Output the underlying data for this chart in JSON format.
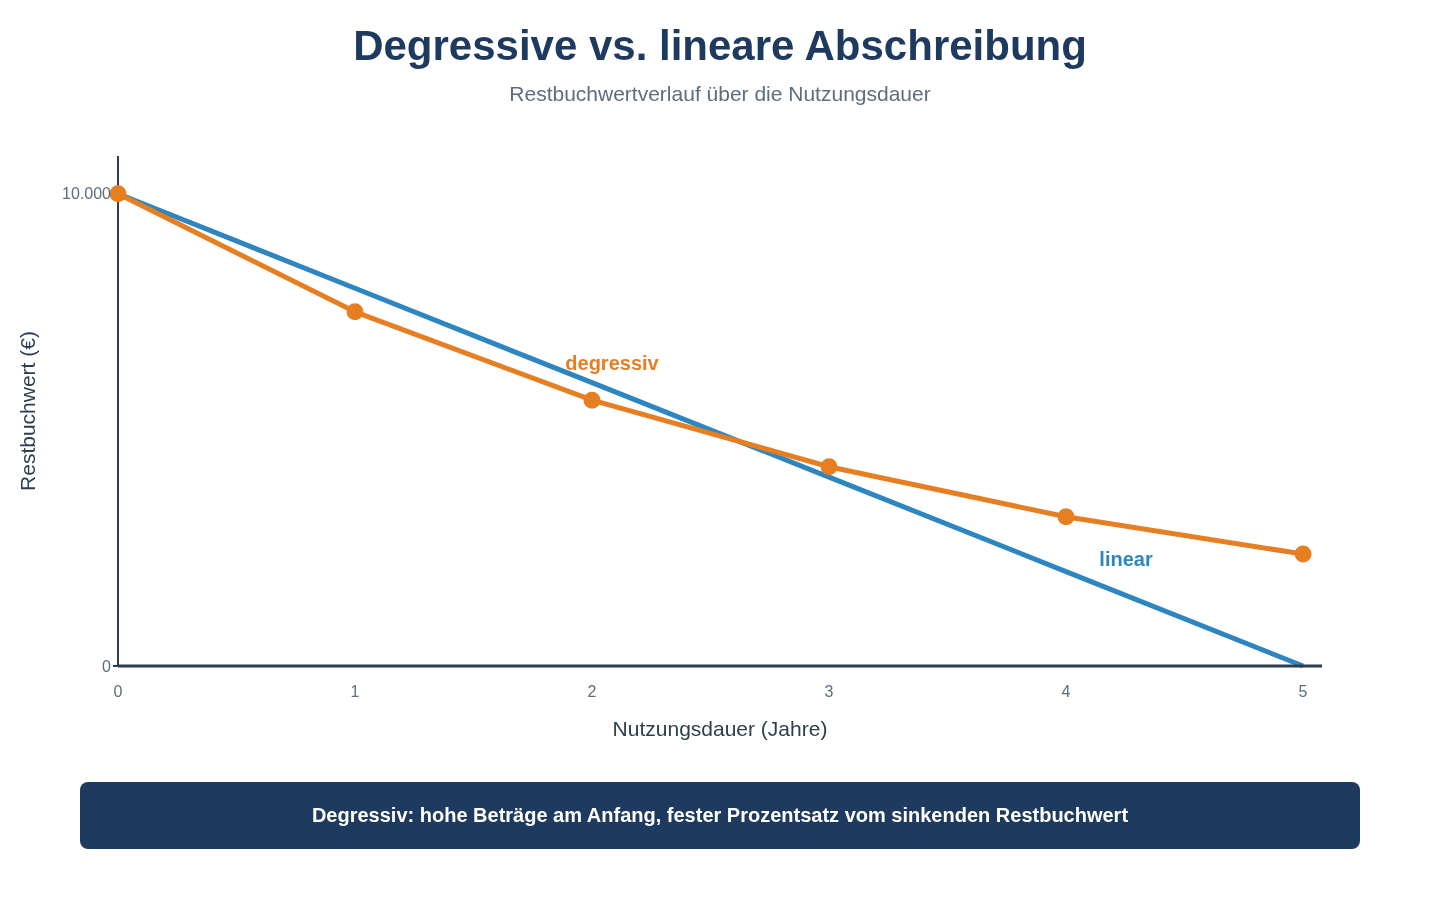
{
  "chart_data": {
    "type": "line",
    "title": "Degressive vs. lineare Abschreibung",
    "subtitle": "Restbuchwertverlauf über die Nutzungsdauer",
    "xlabel": "Nutzungsdauer (Jahre)",
    "ylabel": "Restbuchwert (€)",
    "x": [
      0,
      1,
      2,
      3,
      4,
      5
    ],
    "series": [
      {
        "name": "linear",
        "color": "#2e86c1",
        "values": [
          10000,
          8000,
          6000,
          4000,
          2000,
          0
        ],
        "marker": "none"
      },
      {
        "name": "degressiv",
        "color": "#e67e22",
        "values": [
          10000,
          7500,
          5630,
          4220,
          3160,
          2370
        ],
        "marker": "circle"
      }
    ],
    "xlim": [
      0,
      5.08
    ],
    "xticks": [
      0,
      1,
      2,
      3,
      4,
      5
    ],
    "ylim": [
      0,
      10800
    ],
    "yticks": [
      0,
      {
        "value": 10000,
        "label": "10.000"
      }
    ],
    "grid": false,
    "legend": false,
    "line_style": "solid",
    "annotations": [
      "Degressiv: hohe Beträge am Anfang, fester Prozentsatz vom sinkenden Restbuchwert"
    ]
  }
}
